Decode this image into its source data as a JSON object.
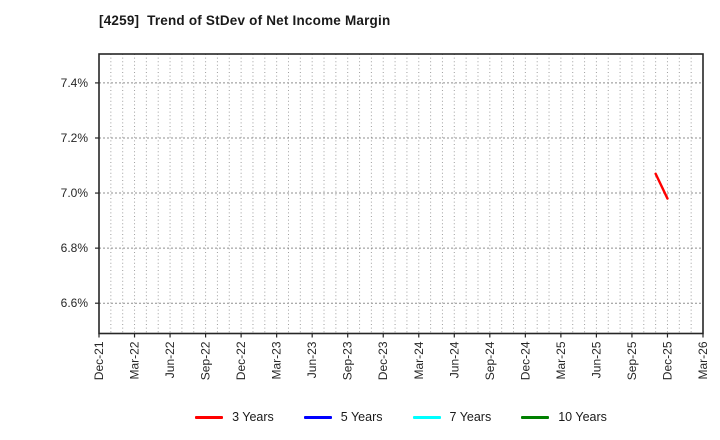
{
  "chart_data": {
    "type": "line",
    "title": "[4259]  Trend of StDev of Net Income Margin",
    "ticker": "4259",
    "ylabel": "",
    "xlabel": "",
    "ylim": [
      6.49,
      7.505
    ],
    "y_tick_values": [
      6.6,
      6.8,
      7.0,
      7.2,
      7.4
    ],
    "y_tick_labels": [
      "6.6%",
      "6.8%",
      "7.0%",
      "7.2%",
      "7.4%"
    ],
    "x_tick_labels": [
      "Dec-21",
      "Mar-22",
      "Jun-22",
      "Sep-22",
      "Dec-22",
      "Mar-23",
      "Jun-23",
      "Sep-23",
      "Dec-23",
      "Mar-24",
      "Jun-24",
      "Sep-24",
      "Dec-24",
      "Mar-25",
      "Jun-25",
      "Sep-25",
      "Dec-25",
      "Mar-26"
    ],
    "x_months_per_tick": 3,
    "x_total_months": 51,
    "grid": {
      "vertical": "monthly dotted",
      "horizontal": "dashed at y ticks",
      "color": "#9a9a9a"
    },
    "legend_position": "bottom-center",
    "series": [
      {
        "name": "3 Years",
        "color": "#ff0000",
        "points": [
          {
            "month": "Nov-25",
            "month_index": 47,
            "value": 7.07
          },
          {
            "month": "Dec-25",
            "month_index": 48,
            "value": 6.98
          }
        ]
      },
      {
        "name": "5 Years",
        "color": "#0000ff",
        "points": []
      },
      {
        "name": "7 Years",
        "color": "#00ffff",
        "points": []
      },
      {
        "name": "10 Years",
        "color": "#008000",
        "points": []
      }
    ],
    "axis_color": "#262626",
    "background_color": "#ffffff"
  }
}
